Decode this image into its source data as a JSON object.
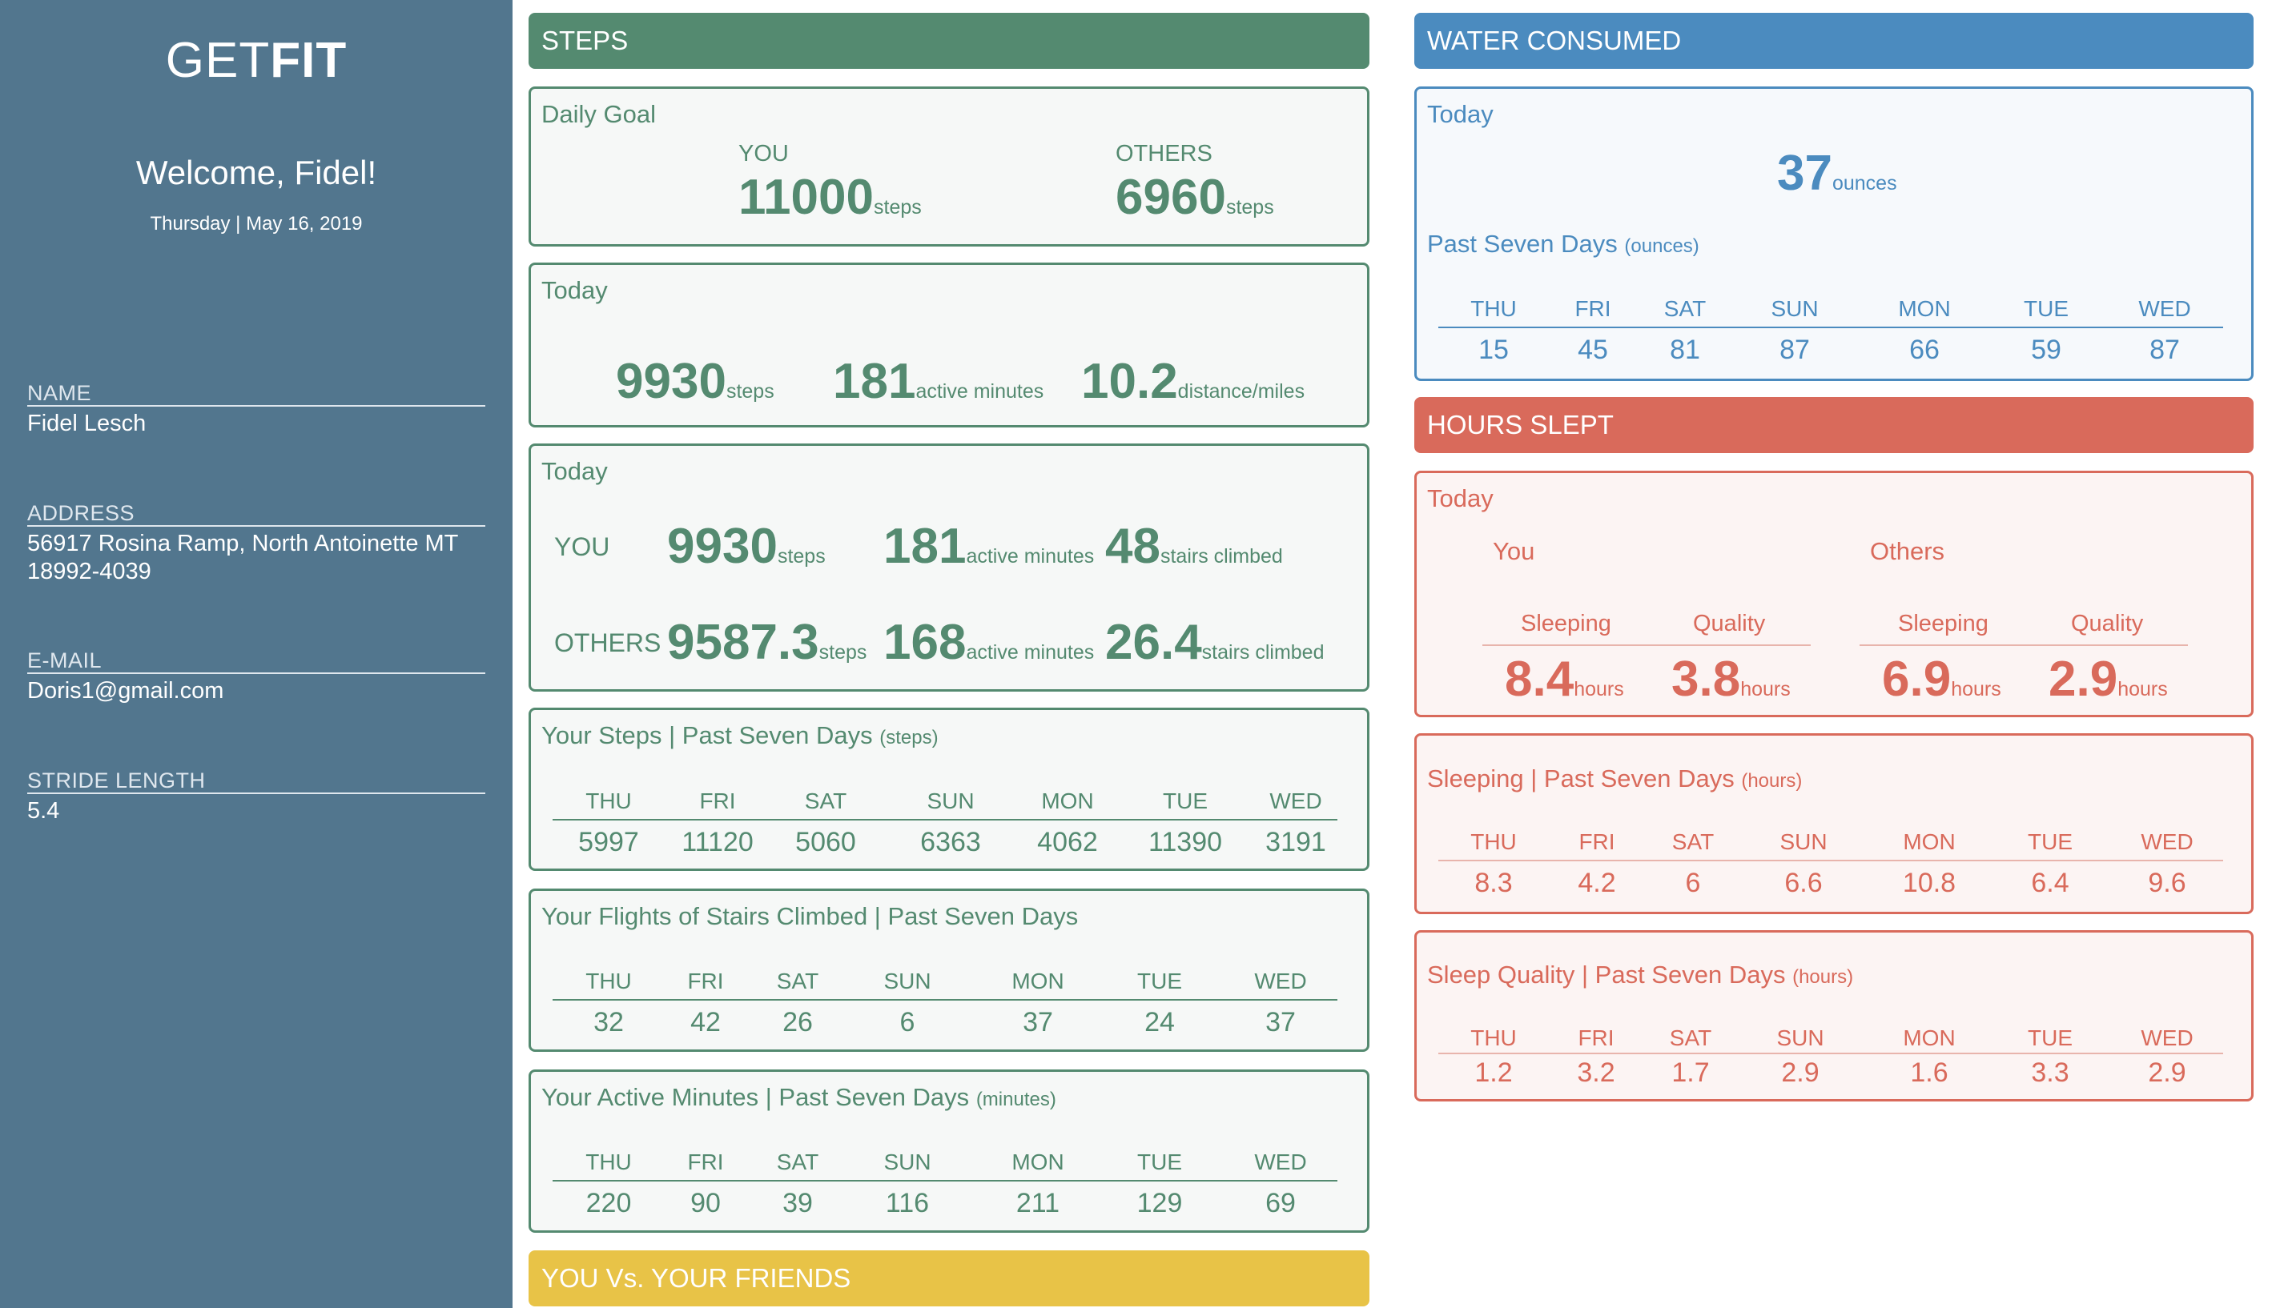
{
  "app": {
    "logo_light": "GET",
    "logo_bold": "FIT"
  },
  "sidebar": {
    "welcome": "Welcome, Fidel!",
    "date": "Thursday | May 16, 2019",
    "fields": [
      {
        "label": "NAME",
        "value": "Fidel Lesch"
      },
      {
        "label": "ADDRESS",
        "value": "56917 Rosina Ramp, North Antoinette MT",
        "value2": "18992-4039"
      },
      {
        "label": "E-MAIL",
        "value": "Doris1@gmail.com"
      },
      {
        "label": "STRIDE LENGTH",
        "value": "5.4"
      }
    ]
  },
  "colors": {
    "sidebar": "#52768e",
    "steps": "#548a70",
    "water": "#4b8bbf",
    "sleep": "#d96a5b",
    "friends": "#e8c347"
  },
  "days": [
    "THU",
    "FRI",
    "SAT",
    "SUN",
    "MON",
    "TUE",
    "WED"
  ],
  "steps": {
    "header": "STEPS",
    "daily_goal": {
      "title": "Daily Goal",
      "you_label": "YOU",
      "you_value": "11000",
      "you_unit": "steps",
      "others_label": "OTHERS",
      "others_value": "6960",
      "others_unit": "steps"
    },
    "today": {
      "title": "Today",
      "steps": "9930",
      "steps_unit": "steps",
      "minutes": "181",
      "minutes_unit": "active minutes",
      "distance": "10.2",
      "distance_unit": "distance/miles"
    },
    "compare": {
      "title": "Today",
      "you_label": "YOU",
      "you_steps": "9930",
      "you_minutes": "181",
      "you_stairs": "48",
      "others_label": "OTHERS",
      "others_steps": "9587.3",
      "others_minutes": "168",
      "others_stairs": "26.4",
      "steps_unit": "steps",
      "minutes_unit": "active minutes",
      "stairs_unit": "stairs climbed"
    },
    "week_steps": {
      "title": "Your Steps | Past Seven Days",
      "unit": "(steps)",
      "values": [
        "5997",
        "11120",
        "5060",
        "6363",
        "4062",
        "11390",
        "3191"
      ]
    },
    "week_stairs": {
      "title": "Your Flights of Stairs Climbed | Past Seven Days",
      "values": [
        "32",
        "42",
        "26",
        "6",
        "37",
        "24",
        "37"
      ]
    },
    "week_minutes": {
      "title": "Your Active Minutes | Past Seven Days",
      "unit": "(minutes)",
      "values": [
        "220",
        "90",
        "39",
        "116",
        "211",
        "129",
        "69"
      ]
    }
  },
  "friends": {
    "header": "YOU Vs. YOUR FRIENDS"
  },
  "water": {
    "header": "WATER CONSUMED",
    "today_title": "Today",
    "today_value": "37",
    "today_unit": "ounces",
    "week_title": "Past Seven Days",
    "week_unit": "(ounces)",
    "week_values": [
      "15",
      "45",
      "81",
      "87",
      "66",
      "59",
      "87"
    ]
  },
  "sleep": {
    "header": "HOURS SLEPT",
    "today_title": "Today",
    "you_label": "You",
    "others_label": "Others",
    "sleeping_label": "Sleeping",
    "quality_label": "Quality",
    "you_sleeping": "8.4",
    "you_quality": "3.8",
    "others_sleeping": "6.9",
    "others_quality": "2.9",
    "unit": "hours",
    "week_sleep": {
      "title": "Sleeping | Past Seven Days",
      "unit": "(hours)",
      "values": [
        "8.3",
        "4.2",
        "6",
        "6.6",
        "10.8",
        "6.4",
        "9.6"
      ]
    },
    "week_quality": {
      "title": "Sleep Quality | Past Seven Days",
      "unit": "(hours)",
      "values": [
        "1.2",
        "3.2",
        "1.7",
        "2.9",
        "1.6",
        "3.3",
        "2.9"
      ]
    }
  }
}
